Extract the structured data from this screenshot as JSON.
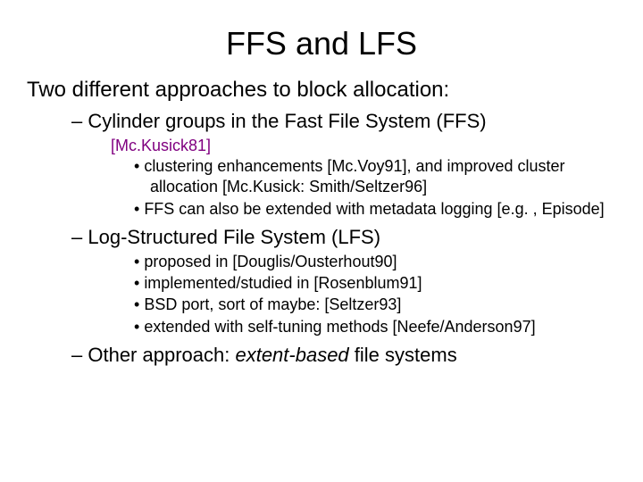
{
  "colors": {
    "background": "#ffffff",
    "text": "#000000",
    "citation": "#800080"
  },
  "typography": {
    "title_font": "Comic Sans MS",
    "body_font": "Arial",
    "title_size_pt": 36,
    "body_size_pt": 24,
    "level1_size_pt": 22,
    "level2_size_pt": 18,
    "citation_size_pt": 18
  },
  "title": "FFS and LFS",
  "intro": "Two different approaches to block allocation:",
  "items": {
    "a": {
      "label": "Cylinder groups in the Fast File System (FFS)",
      "citation": "[Mc.Kusick81]",
      "sub1": "clustering enhancements [Mc.Voy91], and improved cluster allocation [Mc.Kusick: Smith/Seltzer96]",
      "sub2": "FFS can also be extended with metadata logging [e.g. , Episode]"
    },
    "b": {
      "label": "Log-Structured File System (LFS)",
      "sub1": "proposed in [Douglis/Ousterhout90]",
      "sub2": "implemented/studied in [Rosenblum91]",
      "sub3": "BSD port, sort of maybe:  [Seltzer93]",
      "sub4": "extended with self-tuning methods [Neefe/Anderson97]"
    },
    "c": {
      "prefix": "Other approach: ",
      "italic": "extent-based",
      "suffix": " file systems"
    }
  }
}
